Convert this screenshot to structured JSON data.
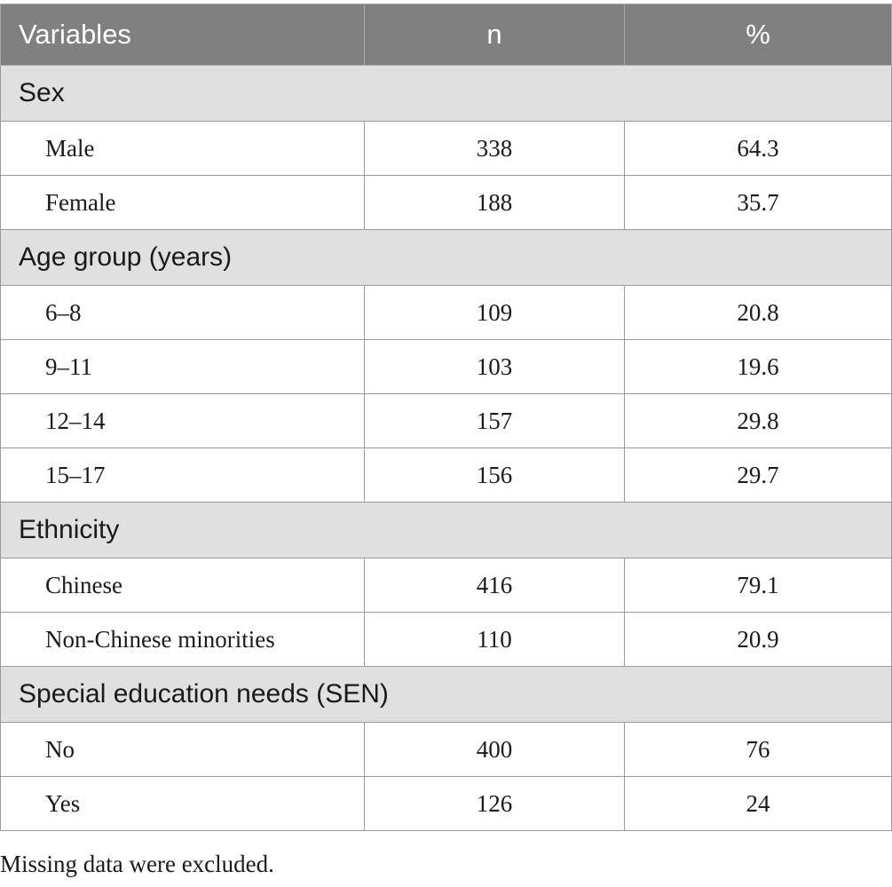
{
  "table": {
    "headers": [
      "Variables",
      "n",
      "%"
    ],
    "groups": [
      {
        "title": "Sex",
        "rows": [
          {
            "label": "Male",
            "n": "338",
            "pct": "64.3"
          },
          {
            "label": "Female",
            "n": "188",
            "pct": "35.7"
          }
        ]
      },
      {
        "title": "Age group (years)",
        "rows": [
          {
            "label": "6–8",
            "n": "109",
            "pct": "20.8"
          },
          {
            "label": "9–11",
            "n": "103",
            "pct": "19.6"
          },
          {
            "label": "12–14",
            "n": "157",
            "pct": "29.8"
          },
          {
            "label": "15–17",
            "n": "156",
            "pct": "29.7"
          }
        ]
      },
      {
        "title": "Ethnicity",
        "rows": [
          {
            "label": "Chinese",
            "n": "416",
            "pct": "79.1"
          },
          {
            "label": "Non-Chinese minorities",
            "n": "110",
            "pct": "20.9"
          }
        ]
      },
      {
        "title": "Special education needs (SEN)",
        "rows": [
          {
            "label": "No",
            "n": "400",
            "pct": "76"
          },
          {
            "label": "Yes",
            "n": "126",
            "pct": "24"
          }
        ]
      }
    ]
  },
  "footnote": "Missing data were excluded.",
  "colors": {
    "header_bg": "#808080",
    "group_bg": "#e0e0e0",
    "border": "#9a9a9a"
  }
}
